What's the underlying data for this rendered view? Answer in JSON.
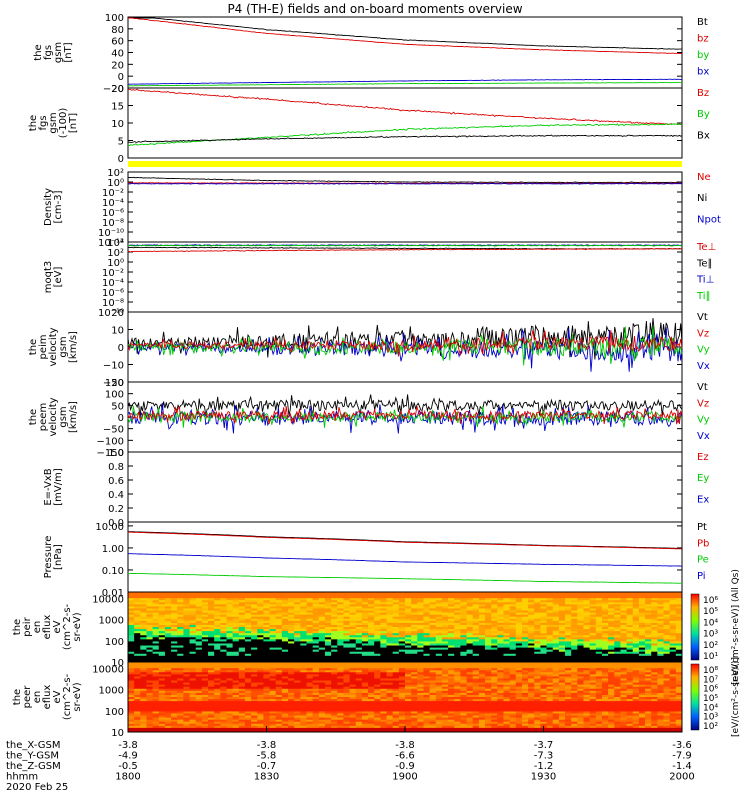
{
  "title": "P4 (TH-E) fields and on-board moments overview",
  "colors": {
    "black": "#000000",
    "red": "#dd0000",
    "green": "#00cc00",
    "blue": "#0000cc",
    "yellow": "#ffff00"
  },
  "chart_data": [
    {
      "type": "line",
      "ylabel": [
        "the",
        "fgs",
        "gsm",
        "[nT]"
      ],
      "yticks": [
        "100",
        "80",
        "60",
        "40",
        "20",
        "0",
        "−20"
      ],
      "ylim": [
        -25,
        105
      ],
      "legend": [
        {
          "text": "Bt",
          "color": "black"
        },
        {
          "text": "bz",
          "color": "red"
        },
        {
          "text": "by",
          "color": "green"
        },
        {
          "text": "bx",
          "color": "blue"
        }
      ],
      "x": [
        1800,
        1830,
        1900,
        1930,
        2000
      ],
      "series": [
        {
          "name": "Bt",
          "color": "black",
          "values": [
            108,
            82,
            63,
            52,
            46
          ],
          "noise": 0.3
        },
        {
          "name": "bz",
          "color": "red",
          "values": [
            104,
            75,
            55,
            45,
            38
          ],
          "noise": 0.3
        },
        {
          "name": "by",
          "color": "green",
          "values": [
            -21,
            -19,
            -17,
            -16,
            -15
          ],
          "noise": 0.2
        },
        {
          "name": "bx",
          "color": "blue",
          "values": [
            -18,
            -15,
            -12,
            -10,
            -9
          ],
          "noise": 0.2
        }
      ]
    },
    {
      "type": "line",
      "ylabel": [
        "the",
        "fgs",
        "gsm",
        "(-100)",
        "[nT]"
      ],
      "yticks": [
        "20",
        "15",
        "10",
        "5",
        "0"
      ],
      "ylim": [
        -2,
        20
      ],
      "legend": [
        {
          "text": "Bz",
          "color": "red"
        },
        {
          "text": "By",
          "color": "green"
        },
        {
          "text": "Bx",
          "color": "black"
        }
      ],
      "x": [
        1800,
        1830,
        1900,
        1930,
        2000
      ],
      "series": [
        {
          "name": "Bz",
          "color": "red",
          "values": [
            19.5,
            16.5,
            13,
            10.5,
            8.5
          ],
          "noise": 0.15
        },
        {
          "name": "By",
          "color": "green",
          "values": [
            2,
            4.5,
            7,
            8.3,
            8.6
          ],
          "noise": 0.15
        },
        {
          "name": "Bx",
          "color": "black",
          "values": [
            3,
            4,
            4.7,
            5,
            5
          ],
          "noise": 0.12
        }
      ]
    },
    {
      "type": "line",
      "ylabel": [
        "Density",
        "[cm-3]"
      ],
      "yticks": [
        "10²",
        "10⁰",
        "10⁻²",
        "10⁻⁴",
        "10⁻⁶",
        "10⁻⁸",
        "10⁻¹⁰",
        "10⁻¹²"
      ],
      "ylim": [
        -13,
        2.5
      ],
      "legend": [
        {
          "text": "Ne",
          "color": "red"
        },
        {
          "text": "Ni",
          "color": "black"
        },
        {
          "text": "Npot",
          "color": "blue"
        }
      ],
      "x": [
        1800,
        1830,
        1900,
        1930,
        2000
      ],
      "series": [
        {
          "name": "Ni",
          "color": "black",
          "values": [
            1.3,
            0.6,
            0.3,
            0.2,
            0.2
          ],
          "noise": 0.05
        },
        {
          "name": "Ne",
          "color": "red",
          "values": [
            0.1,
            0.05,
            0.0,
            0.0,
            0.0
          ],
          "noise": 0.05
        },
        {
          "name": "Npot",
          "color": "blue",
          "values": [
            -0.1,
            -0.1,
            -0.1,
            -0.1,
            -0.1
          ],
          "noise": 0.04
        }
      ]
    },
    {
      "type": "line",
      "ylabel": [
        "moqt3",
        "[eV]"
      ],
      "yticks": [
        "10⁴",
        "10²",
        "10⁰",
        "10⁻²",
        "10⁻⁴",
        "10⁻⁶",
        "10⁻⁸",
        "10⁻¹⁰"
      ],
      "ylim": [
        -11,
        4.5
      ],
      "legend": [
        {
          "text": "Te⊥",
          "color": "red"
        },
        {
          "text": "Te∥",
          "color": "black"
        },
        {
          "text": "Ti⊥",
          "color": "blue"
        },
        {
          "text": "Ti∥",
          "color": "green"
        }
      ],
      "x": [
        1800,
        1830,
        1900,
        1930,
        2000
      ],
      "series": [
        {
          "name": "Ti⊥",
          "color": "blue",
          "values": [
            3.8,
            3.8,
            3.8,
            3.8,
            3.8
          ],
          "noise": 0.06
        },
        {
          "name": "Ti∥",
          "color": "green",
          "values": [
            3.7,
            3.7,
            3.7,
            3.7,
            3.7
          ],
          "noise": 0.06
        },
        {
          "name": "Te∥",
          "color": "black",
          "values": [
            3.3,
            3.2,
            3.1,
            3.0,
            3.0
          ],
          "noise": 0.05
        },
        {
          "name": "Te⊥",
          "color": "red",
          "values": [
            2.4,
            2.6,
            2.8,
            2.9,
            3.0
          ],
          "noise": 0.05
        }
      ]
    },
    {
      "type": "line",
      "ylabel": [
        "the",
        "peim",
        "velocity",
        "gsm",
        "[km/s]"
      ],
      "yticks": [
        "20",
        "10",
        "0",
        "−10",
        "−20"
      ],
      "ylim": [
        -20,
        20
      ],
      "legend": [
        {
          "text": "Vt",
          "color": "black"
        },
        {
          "text": "Vz",
          "color": "red"
        },
        {
          "text": "Vy",
          "color": "green"
        },
        {
          "text": "Vx",
          "color": "blue"
        }
      ],
      "x": [
        1800,
        1830,
        1900,
        1930,
        2000
      ],
      "series": [
        {
          "name": "Vt",
          "color": "black",
          "values": [
            2,
            3,
            5,
            6,
            7
          ],
          "noise": 3,
          "growth": 1.5
        },
        {
          "name": "Vx",
          "color": "blue",
          "values": [
            0,
            -1,
            -1,
            -2,
            -2
          ],
          "noise": 2,
          "growth": 2.5
        },
        {
          "name": "Vy",
          "color": "green",
          "values": [
            0,
            0,
            0,
            0,
            0
          ],
          "noise": 2,
          "growth": 2
        },
        {
          "name": "Vz",
          "color": "red",
          "values": [
            1,
            1,
            1,
            2,
            2
          ],
          "noise": 1.5,
          "growth": 2
        }
      ]
    },
    {
      "type": "line",
      "ylabel": [
        "the",
        "peem",
        "velocity",
        "gsm",
        "[km/s]"
      ],
      "yticks": [
        "150",
        "100",
        "50",
        "0",
        "−50",
        "−100",
        "−150"
      ],
      "ylim": [
        -150,
        150
      ],
      "legend": [
        {
          "text": "Vt",
          "color": "black"
        },
        {
          "text": "Vz",
          "color": "red"
        },
        {
          "text": "Vy",
          "color": "green"
        },
        {
          "text": "Vx",
          "color": "blue"
        }
      ],
      "x": [
        1800,
        1830,
        1900,
        1930,
        2000
      ],
      "series": [
        {
          "name": "Vt",
          "color": "black",
          "values": [
            45,
            50,
            50,
            50,
            50
          ],
          "noise": 22
        },
        {
          "name": "Vx",
          "color": "blue",
          "values": [
            -5,
            -5,
            -5,
            -5,
            -5
          ],
          "noise": 30
        },
        {
          "name": "Vy",
          "color": "green",
          "values": [
            0,
            0,
            0,
            0,
            0
          ],
          "noise": 22
        },
        {
          "name": "Vz",
          "color": "red",
          "values": [
            8,
            8,
            8,
            8,
            8
          ],
          "noise": 18
        }
      ]
    },
    {
      "type": "line",
      "ylabel": [
        "E=-VxB",
        "[mV/m]"
      ],
      "yticks": [
        "1.0",
        "0.8",
        "0.6",
        "0.4",
        "0.2",
        "0.0"
      ],
      "ylim": [
        0,
        1
      ],
      "legend": [
        {
          "text": "Ez",
          "color": "red"
        },
        {
          "text": "Ey",
          "color": "green"
        },
        {
          "text": "Ex",
          "color": "blue"
        }
      ],
      "x": [],
      "series": []
    },
    {
      "type": "line",
      "ylabel": [
        "Pressure",
        "[nPa]"
      ],
      "yscale": "log",
      "yticks": [
        "10.00",
        "1.00",
        "0.10",
        "0.01"
      ],
      "ylim": [
        0.01,
        15
      ],
      "legend": [
        {
          "text": "Pt",
          "color": "black"
        },
        {
          "text": "Pb",
          "color": "red"
        },
        {
          "text": "Pe",
          "color": "green"
        },
        {
          "text": "Pi",
          "color": "blue"
        }
      ],
      "x": [
        1800,
        1830,
        1900,
        1930,
        2000
      ],
      "series": [
        {
          "name": "Pt",
          "color": "black",
          "values": [
            5.5,
            3.2,
            1.9,
            1.3,
            0.95
          ],
          "noise": 0.01
        },
        {
          "name": "Pb",
          "color": "red",
          "values": [
            5.2,
            3.0,
            1.8,
            1.25,
            0.9
          ],
          "noise": 0.01
        },
        {
          "name": "Pi",
          "color": "blue",
          "values": [
            0.55,
            0.35,
            0.23,
            0.18,
            0.15
          ],
          "noise": 0.02
        },
        {
          "name": "Pe",
          "color": "green",
          "values": [
            0.07,
            0.05,
            0.04,
            0.03,
            0.025
          ],
          "noise": 0.02
        }
      ]
    },
    {
      "type": "heatmap",
      "ylabel": [
        "the",
        "peir",
        "en",
        "eflux",
        "eV",
        "(cm^2-s-",
        "sr-eV)"
      ],
      "yticks": [
        "10000",
        "1000",
        "100",
        "10"
      ],
      "ylim": [
        10,
        20000
      ],
      "colorbar": {
        "ticks": [
          "10⁶",
          "10⁵",
          "10⁴",
          "10³",
          "10²",
          "10¹"
        ],
        "label": "[eV/(cm²-s-sr-eV)] (All Qs)"
      }
    },
    {
      "type": "heatmap",
      "ylabel": [
        "the",
        "peer",
        "en",
        "eflux",
        "eV",
        "(cm^2-s-",
        "sr-eV)"
      ],
      "yticks": [
        "10000",
        "1000",
        "100",
        "10"
      ],
      "ylim": [
        10,
        20000
      ],
      "colorbar": {
        "ticks": [
          "10⁸",
          "10⁷",
          "10⁶",
          "10⁵",
          "10⁴",
          "10³",
          "10²"
        ],
        "label": "[eV/(cm²-s-sr-eV)]"
      }
    }
  ],
  "xaxis": {
    "labels": [
      "the_X-GSM",
      "the_Y-GSM",
      "the_Z-GSM",
      "hhmm",
      "2020 Feb 25"
    ],
    "ticks": [
      {
        "x": [
          "-3.8",
          "-4.9",
          "-0.5",
          "1800"
        ]
      },
      {
        "x": [
          "-3.8",
          "-5.8",
          "-0.7",
          "1830"
        ]
      },
      {
        "x": [
          "-3.8",
          "-6.6",
          "-0.9",
          "1900"
        ]
      },
      {
        "x": [
          "-3.7",
          "-7.3",
          "-1.2",
          "1930"
        ]
      },
      {
        "x": [
          "-3.6",
          "-7.9",
          "-1.4",
          "2000"
        ]
      }
    ]
  },
  "flag_bar_color": "#ffff00"
}
